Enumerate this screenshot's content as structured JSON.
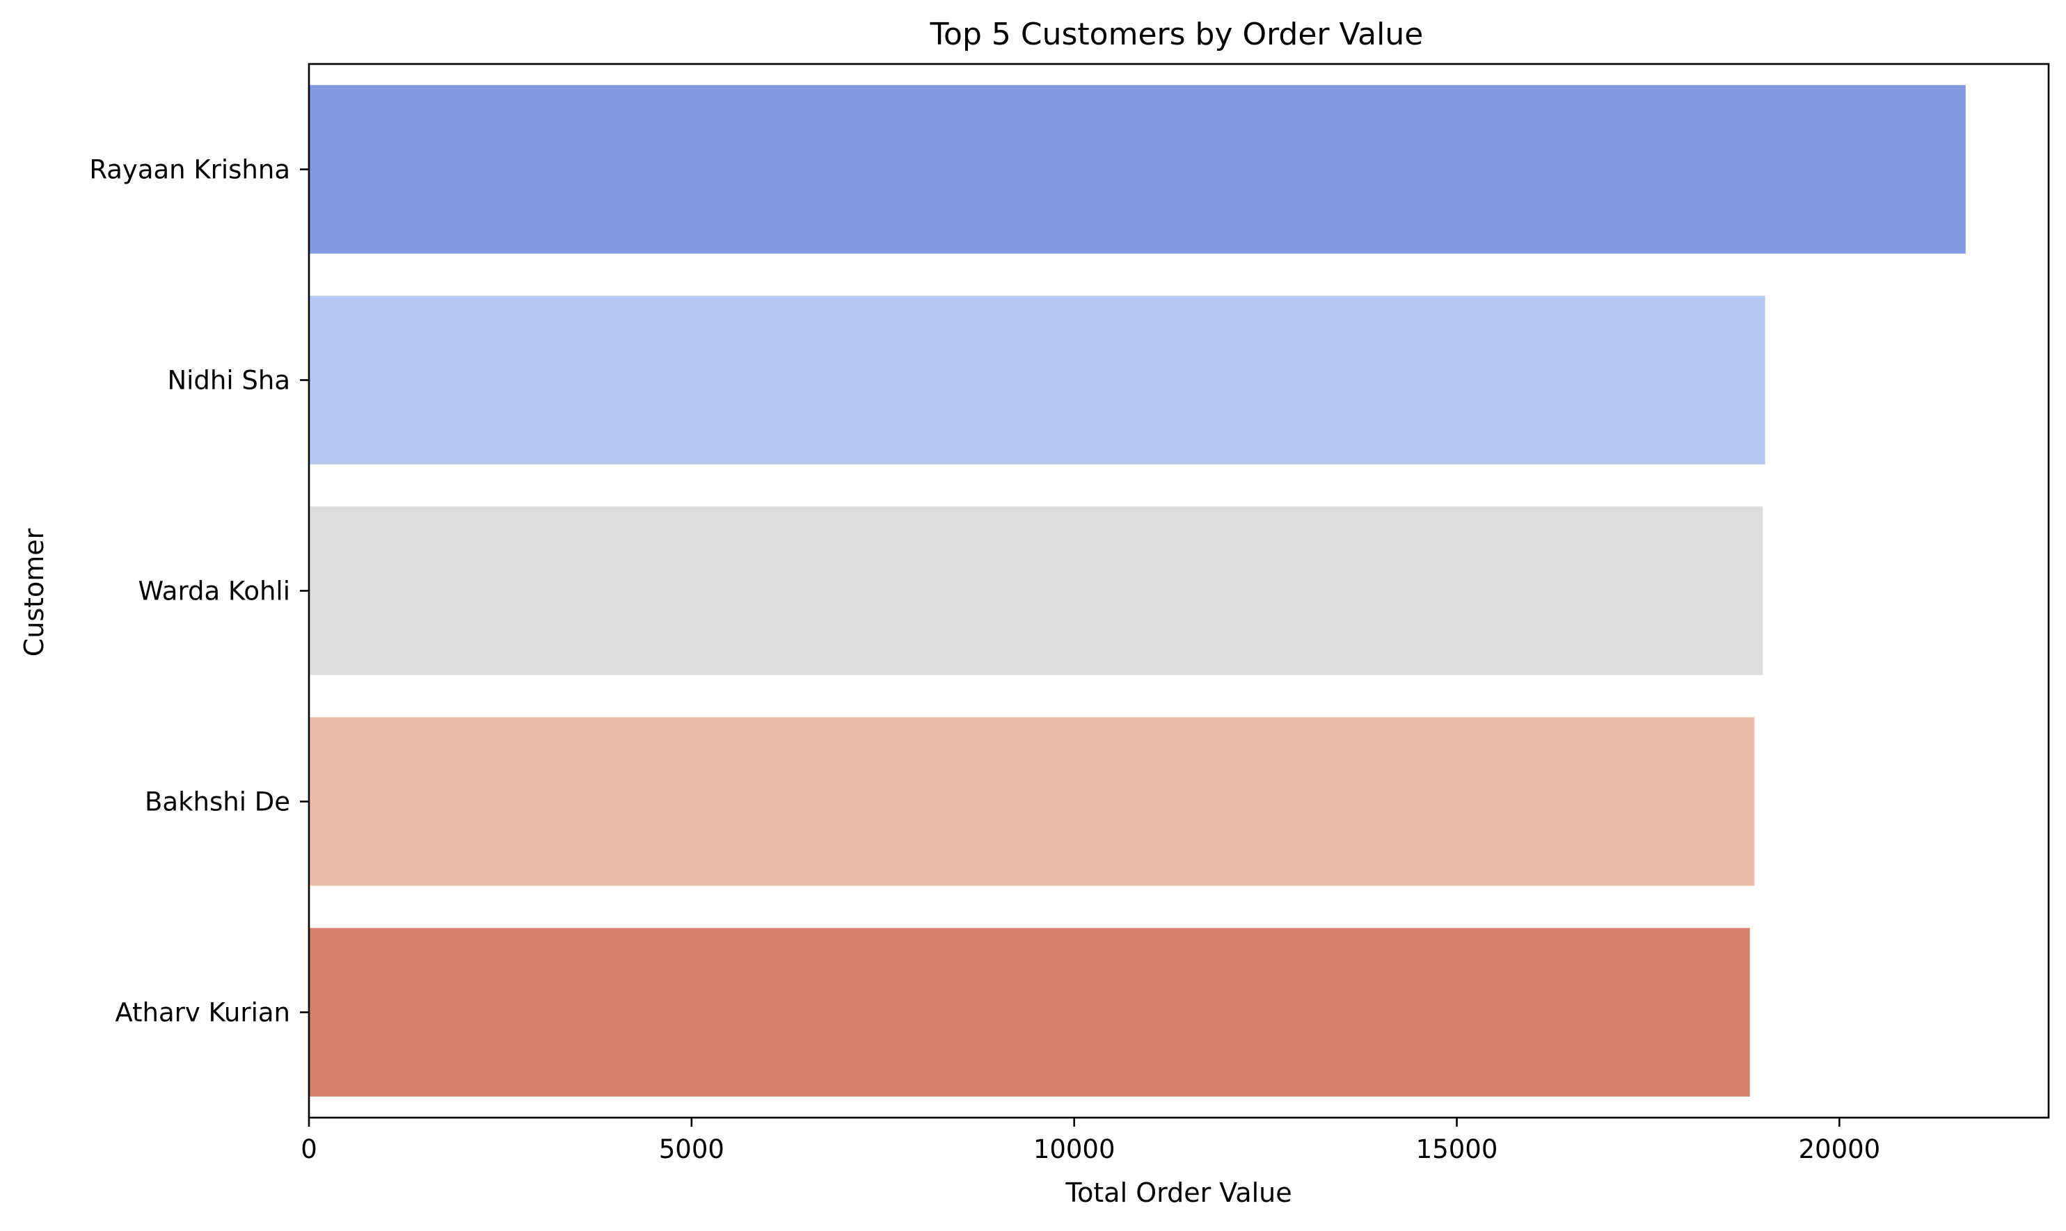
{
  "chart_data": {
    "type": "bar",
    "orientation": "horizontal",
    "title": "Top 5 Customers by Order Value",
    "xlabel": "Total Order Value",
    "ylabel": "Customer",
    "categories": [
      "Rayaan Krishna",
      "Nidhi Sha",
      "Warda Kohli",
      "Bakhshi De",
      "Atharv Kurian"
    ],
    "values": [
      21650,
      19030,
      19000,
      18890,
      18830
    ],
    "colors": [
      "#819AE2",
      "#B5C9F2",
      "#DCDCDC",
      "#EBBDA8",
      "#D67F6D"
    ],
    "xlim": [
      0,
      22734
    ],
    "xticks": [
      0,
      5000,
      10000,
      15000,
      20000
    ],
    "grid": false,
    "legend": "none"
  }
}
